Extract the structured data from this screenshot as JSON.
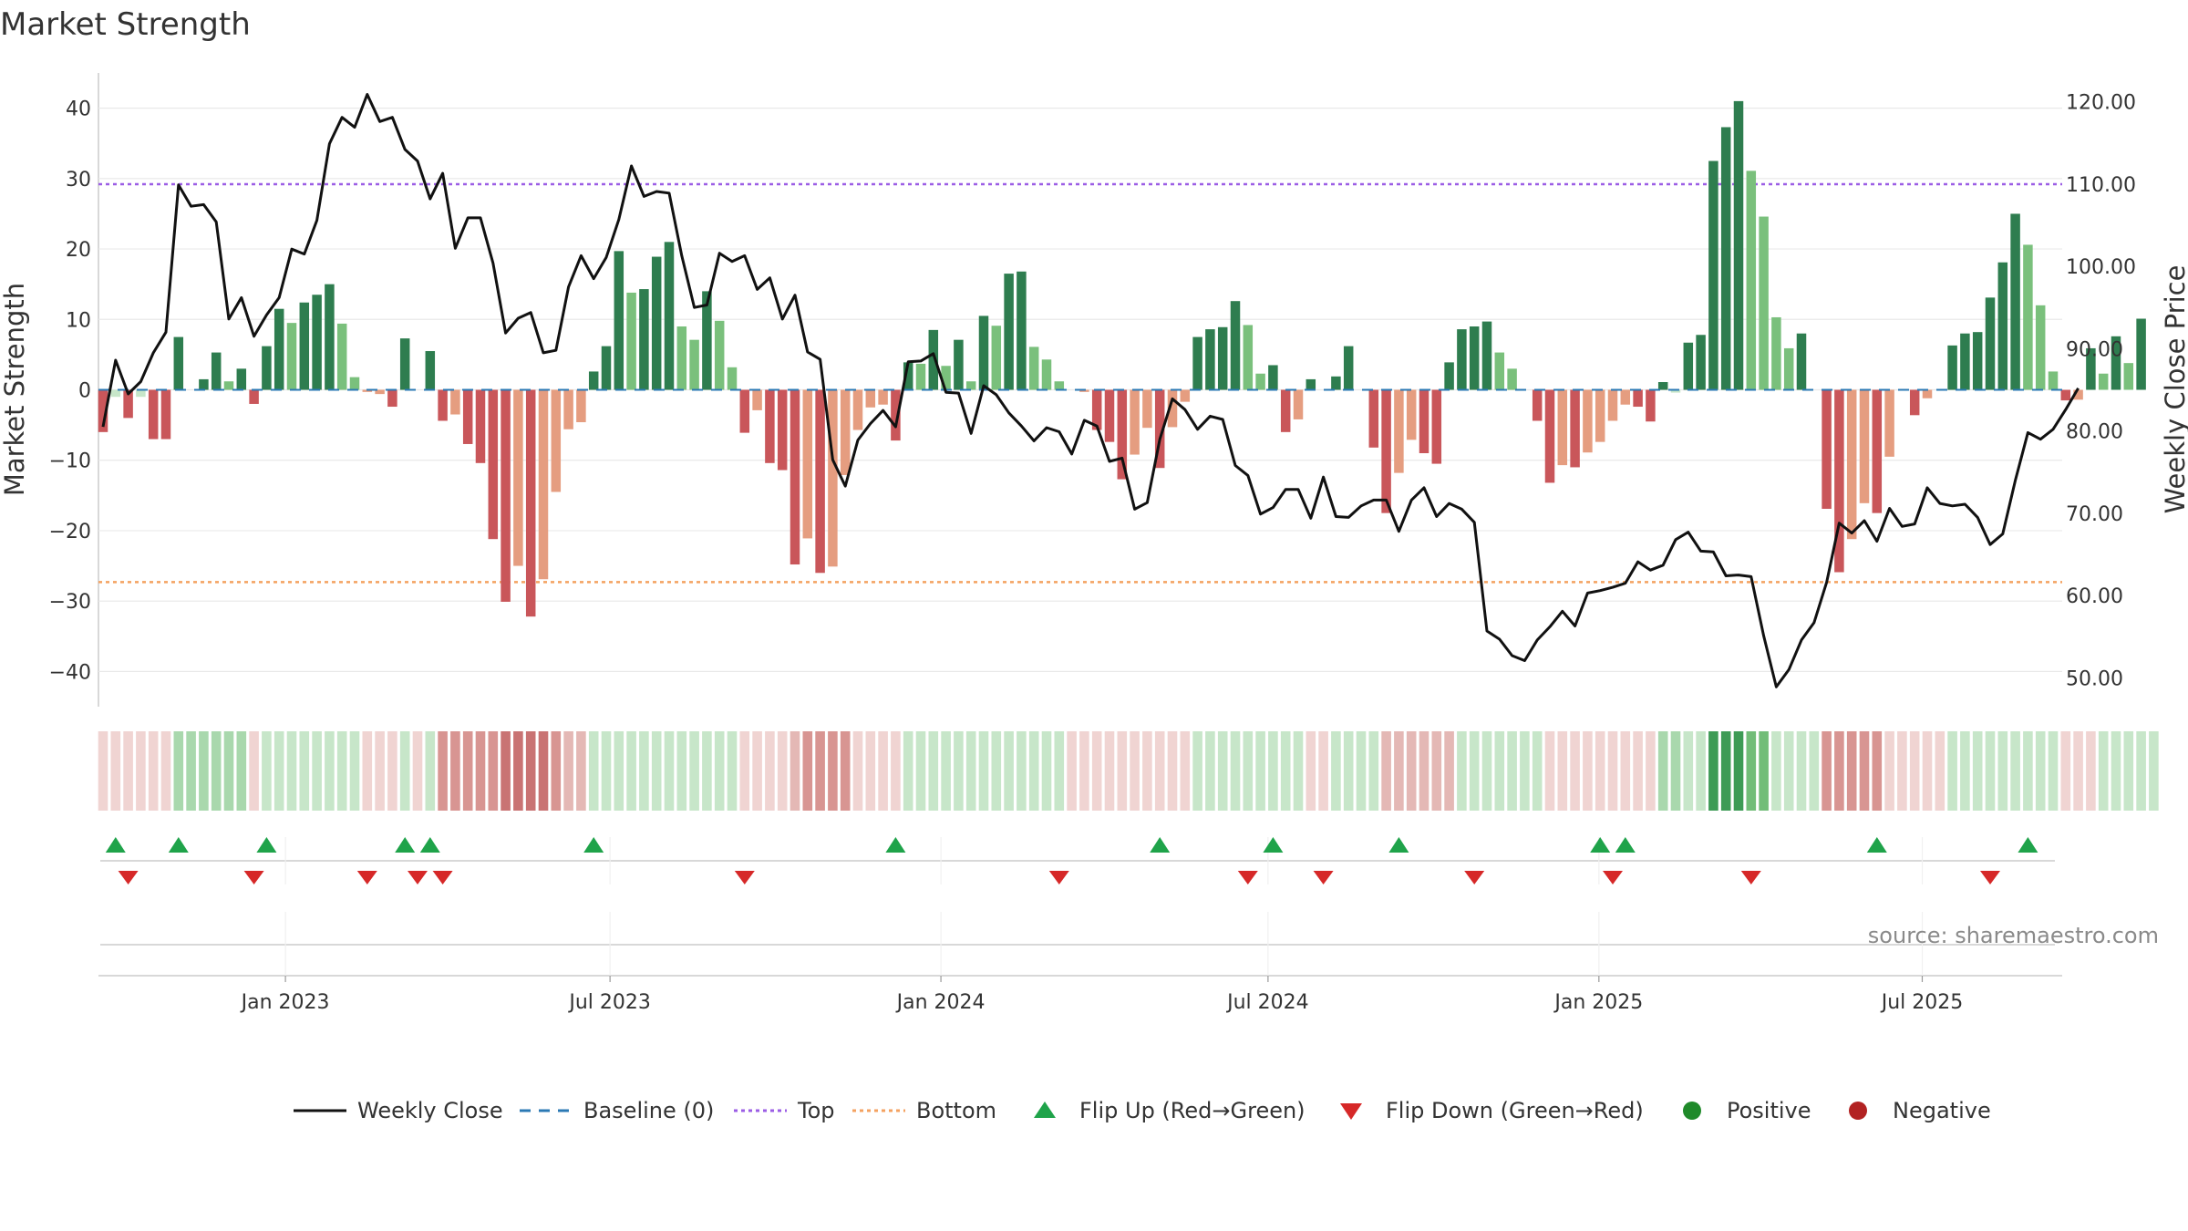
{
  "chart_data": {
    "type": "bar",
    "title": "Market Strength",
    "ylabel": "Market Strength",
    "y2label": "Weekly Close Price",
    "ylim": [
      -45,
      45
    ],
    "y2lim": [
      46.5,
      123.5
    ],
    "y_ticks": [
      40,
      30,
      20,
      10,
      0,
      -10,
      -20,
      -30,
      -40
    ],
    "y_tick_labels": [
      "40",
      "30",
      "20",
      "10",
      "0",
      "−10",
      "−20",
      "−30",
      "−40"
    ],
    "y2_ticks": [
      120,
      110,
      100,
      90,
      80,
      70,
      60,
      50
    ],
    "y2_tick_labels": [
      "120.00",
      "110.00",
      "100.00",
      "90.00",
      "80.00",
      "70.00",
      "60.00",
      "50.00"
    ],
    "x_ticks": [
      {
        "label": "Jan 2023",
        "index": 14.5
      },
      {
        "label": "Jul 2023",
        "index": 40.3
      },
      {
        "label": "Jan 2024",
        "index": 66.6
      },
      {
        "label": "Jul 2024",
        "index": 92.6
      },
      {
        "label": "Jan 2025",
        "index": 118.9
      },
      {
        "label": "Jul 2025",
        "index": 144.6
      }
    ],
    "top_line": 29.2,
    "bottom_line": -27.3,
    "baseline": 0,
    "series": [
      {
        "name": "Market Strength",
        "values": [
          -6,
          -1,
          -4,
          -1,
          -7,
          -7,
          7.5,
          0,
          1.5,
          5.3,
          1.2,
          3,
          -2,
          6.2,
          11.5,
          9.5,
          12.4,
          13.5,
          15,
          9.4,
          1.8,
          -0.3,
          -0.6,
          -2.4,
          7.3,
          0,
          5.5,
          -4.4,
          -3.5,
          -7.7,
          -10.4,
          -21.2,
          -30.1,
          -25,
          -32.2,
          -26.9,
          -14.5,
          -5.6,
          -4.6,
          2.6,
          6.2,
          19.7,
          13.8,
          14.3,
          18.9,
          21,
          9,
          7.1,
          14,
          9.8,
          3.2,
          -6.1,
          -2.9,
          -10.4,
          -11.4,
          -24.8,
          -21.1,
          -26,
          -25.1,
          -12.1,
          -5.7,
          -2.5,
          -2.1,
          -7.2,
          3.9,
          3.7,
          8.5,
          3.4,
          7.1,
          1.2,
          10.5,
          9.1,
          16.5,
          16.8,
          6.1,
          4.3,
          1.2,
          0,
          -0.3,
          -5.7,
          -7.4,
          -12.7,
          -9.2,
          -5.4,
          -11.1,
          -5.3,
          -1.7,
          7.5,
          8.6,
          8.9,
          12.6,
          9.2,
          2.3,
          3.5,
          -6,
          -4.2,
          1.5,
          0,
          1.9,
          6.2,
          0,
          -8.2,
          -17.5,
          -11.8,
          -7.1,
          -9,
          -10.5,
          3.9,
          8.6,
          9,
          9.7,
          5.3,
          3,
          0,
          -4.4,
          -13.2,
          -10.7,
          -11,
          -8.9,
          -7.4,
          -4.4,
          -2.1,
          -2.4,
          -4.5,
          1.1,
          -0.4,
          6.7,
          7.8,
          32.5,
          37.3,
          41,
          31.1,
          24.6,
          10.3,
          5.9,
          8,
          0,
          -16.9,
          -25.9,
          -21.2,
          -16.1,
          -17.5,
          -9.5,
          0,
          -3.6,
          -1.2,
          0,
          6.3,
          8,
          8.2,
          13.1,
          18.1,
          25,
          20.6,
          12,
          2.6,
          -1.5,
          -1.4,
          5.9,
          2.3,
          7.6,
          3.8,
          10.1
        ],
        "colors": [
          "r2",
          "g3",
          "r2",
          "g3",
          "r2",
          "r2",
          "g1",
          "r3",
          "g1",
          "g1",
          "g2",
          "g1",
          "r2",
          "g1",
          "g1",
          "g2",
          "g1",
          "g1",
          "g1",
          "g2",
          "g2",
          "r3",
          "r3",
          "r2",
          "g1",
          "r3",
          "g1",
          "r2",
          "r3",
          "r2",
          "r2",
          "r2",
          "r2",
          "r3",
          "r2",
          "r3",
          "r3",
          "r3",
          "r3",
          "g1",
          "g1",
          "g1",
          "g2",
          "g1",
          "g1",
          "g1",
          "g2",
          "g2",
          "g1",
          "g2",
          "g2",
          "r2",
          "r3",
          "r2",
          "r2",
          "r2",
          "r3",
          "r2",
          "r3",
          "r3",
          "r3",
          "r3",
          "r3",
          "r2",
          "g1",
          "g2",
          "g1",
          "g2",
          "g1",
          "g2",
          "g1",
          "g2",
          "g1",
          "g1",
          "g2",
          "g2",
          "g2",
          "r3",
          "r3",
          "r2",
          "r2",
          "r2",
          "r3",
          "r3",
          "r2",
          "r3",
          "r3",
          "g1",
          "g1",
          "g1",
          "g1",
          "g2",
          "g2",
          "g1",
          "r2",
          "r3",
          "g1",
          "r3",
          "g1",
          "g1",
          "g3",
          "r2",
          "r2",
          "r3",
          "r3",
          "r2",
          "r2",
          "g1",
          "g1",
          "g1",
          "g1",
          "g2",
          "g2",
          "r3",
          "r2",
          "r2",
          "r3",
          "r2",
          "r3",
          "r3",
          "r3",
          "r3",
          "r2",
          "r2",
          "g1",
          "g3",
          "g1",
          "g1",
          "g1",
          "g1",
          "g1",
          "g2",
          "g2",
          "g2",
          "g2",
          "g1",
          "r3",
          "r2",
          "r2",
          "r3",
          "r3",
          "r2",
          "r3",
          "g3",
          "r2",
          "r3",
          "g3",
          "g1",
          "g1",
          "g1",
          "g1",
          "g1",
          "g1",
          "g2",
          "g2",
          "g2",
          "r2",
          "r3",
          "g1",
          "g2",
          "g1",
          "g2",
          "g1"
        ]
      },
      {
        "name": "Weekly Close",
        "values": [
          80.5,
          88.6,
          84.5,
          86,
          89.5,
          92,
          109.9,
          107.3,
          107.5,
          105.4,
          93.6,
          96.2,
          91.5,
          94.1,
          96.2,
          102.1,
          101.5,
          105.6,
          114.9,
          118.1,
          116.9,
          120.9,
          117.6,
          118.1,
          114.2,
          112.8,
          108.2,
          111.3,
          102.2,
          105.9,
          105.9,
          100.4,
          91.9,
          93.7,
          94.4,
          89.5,
          89.8,
          97.5,
          101.3,
          98.5,
          101.1,
          105.7,
          112.2,
          108.5,
          109.1,
          108.9,
          101.3,
          95,
          95.3,
          101.6,
          100.6,
          101.3,
          97.2,
          98.6,
          93.6,
          96.5,
          89.6,
          88.7,
          76.5,
          73.3,
          78.9,
          80.9,
          82.5,
          80.5,
          88.4,
          88.5,
          89.4,
          84.7,
          84.6,
          79.7,
          85.5,
          84.4,
          82.2,
          80.6,
          78.8,
          80.4,
          79.9,
          77.2,
          81.3,
          80.6,
          76.3,
          76.7,
          70.5,
          71.3,
          79,
          83.9,
          82.6,
          80.2,
          81.8,
          81.4,
          75.8,
          74.6,
          69.9,
          70.7,
          72.9,
          72.9,
          69.4,
          74.4,
          69.6,
          69.5,
          70.9,
          71.6,
          71.6,
          67.8,
          71.6,
          73.1,
          69.6,
          71.2,
          70.5,
          68.9,
          55.7,
          54.7,
          52.7,
          52.1,
          54.6,
          56.2,
          58.1,
          56.3,
          60.3,
          60.6,
          61,
          61.5,
          64.1,
          63.1,
          63.7,
          66.8,
          67.7,
          65.4,
          65.3,
          62.4,
          62.5,
          62.3,
          55.1,
          48.9,
          51,
          54.6,
          56.7,
          61.6,
          68.8,
          67.6,
          69.1,
          66.6,
          70.6,
          68.4,
          68.7,
          73.1,
          71.2,
          70.9,
          71.1,
          69.5,
          66.2,
          67.5,
          74,
          79.8,
          79,
          80.2,
          82.6,
          85.2
        ]
      }
    ],
    "regime_colors": [
      "r4",
      "r4",
      "r4",
      "r4",
      "r4",
      "r4",
      "g4",
      "g4",
      "g4",
      "g4",
      "g4",
      "g4",
      "r4",
      "g3",
      "g3",
      "g3",
      "g3",
      "g3",
      "g3",
      "g3",
      "g3",
      "r4",
      "r4",
      "r4",
      "g3",
      "r4",
      "g3",
      "r2",
      "r2",
      "r2",
      "r2",
      "r2",
      "r1",
      "r1",
      "r1",
      "r1",
      "r2",
      "r3",
      "r3",
      "g3",
      "g3",
      "g3",
      "g3",
      "g3",
      "g3",
      "g3",
      "g3",
      "g3",
      "g3",
      "g3",
      "g3",
      "r4",
      "r4",
      "r4",
      "r4",
      "r3",
      "r2",
      "r2",
      "r2",
      "r2",
      "r4",
      "r4",
      "r4",
      "r4",
      "g3",
      "g3",
      "g3",
      "g3",
      "g3",
      "g3",
      "g3",
      "g3",
      "g3",
      "g3",
      "g3",
      "g3",
      "g3",
      "r4",
      "r4",
      "r4",
      "r4",
      "r4",
      "r4",
      "r4",
      "r4",
      "r4",
      "r4",
      "g3",
      "g3",
      "g3",
      "g3",
      "g3",
      "g3",
      "g3",
      "g3",
      "g3",
      "r4",
      "r4",
      "g3",
      "g3",
      "g3",
      "g3",
      "r3",
      "r3",
      "r3",
      "r3",
      "r3",
      "r3",
      "g3",
      "g3",
      "g3",
      "g3",
      "g3",
      "g3",
      "g3",
      "r4",
      "r4",
      "r4",
      "r4",
      "r4",
      "r4",
      "r4",
      "r4",
      "r4",
      "g4",
      "g4",
      "g3",
      "g3",
      "g1",
      "g1",
      "g1",
      "g2",
      "g2",
      "g3",
      "g3",
      "g3",
      "g3",
      "r2",
      "r2",
      "r2",
      "r2",
      "r2",
      "r4",
      "r4",
      "r4",
      "r4",
      "r4",
      "g3",
      "g3",
      "g3",
      "g3",
      "g3",
      "g3",
      "g3",
      "g3",
      "g3",
      "r4",
      "r4",
      "r4",
      "g3",
      "g3",
      "g3",
      "g3",
      "g3"
    ],
    "flip_up_indices": [
      1,
      6,
      13,
      24,
      26,
      39,
      63,
      84,
      93,
      103,
      119,
      121,
      141,
      153
    ],
    "flip_down_indices": [
      2,
      12,
      21,
      25,
      27,
      51,
      76,
      91,
      97,
      109,
      120,
      131,
      150
    ],
    "legend": [
      "Weekly Close",
      "Baseline (0)",
      "Top",
      "Bottom",
      "Flip Up (Red→Green)",
      "Flip Down (Green→Red)",
      "Positive",
      "Negative"
    ],
    "legend_position": "bottom-center",
    "source": "source: sharemaestro.com"
  },
  "colors": {
    "g1": "#2e7d4f",
    "g2": "#7ac07c",
    "g3": "#c7e6c9",
    "g4": "#a9d8ad",
    "g1_regime": "#3d9b55",
    "g2_regime": "#72bd78",
    "r2": "#c9565a",
    "r3": "#e59d80",
    "r1_regime": "#c97373",
    "r2_regime": "#d89592",
    "r3_regime": "#e4b8b5",
    "r4_regime": "#f0d4d2",
    "line": "#111111",
    "baseline": "#2b79b4",
    "top": "#9b5de5",
    "bottom": "#f4a261",
    "flip_up": "#1fa34a",
    "flip_down": "#d62828",
    "positive": "#1f8a2a",
    "negative": "#b22222",
    "grid": "#e9e9e9",
    "axis": "#cccccc"
  }
}
